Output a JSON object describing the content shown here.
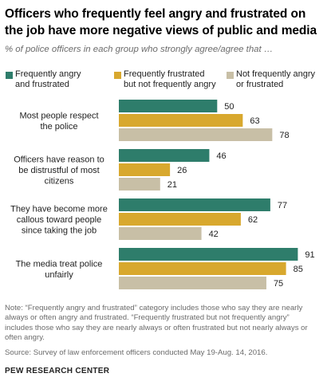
{
  "title_line1": "Officers who frequently feel angry and frustrated on",
  "title_line2": "the job have more negative views of public and media",
  "subtitle": "% of police officers in each group who strongly agree/agree that …",
  "colors": {
    "frequently_angry": "#2e7d6b",
    "frustrated_not_angry": "#d8a82e",
    "not_frequently": "#c8bfa6",
    "label_text": "#222222"
  },
  "legend": [
    {
      "line1": "Frequently angry",
      "line2": "and frustrated"
    },
    {
      "line1": "Frequently frustrated",
      "line2": "but not frequently angry"
    },
    {
      "line1": "Not frequently angry",
      "line2": "or frustrated"
    }
  ],
  "chart_data": {
    "type": "bar",
    "orientation": "horizontal",
    "categories": [
      [
        "Most people respect",
        "the police"
      ],
      [
        "Officers have reason to",
        "be distrustful of most",
        "citizens"
      ],
      [
        "They have become more",
        "callous toward people",
        "since taking the job"
      ],
      [
        "The media treat police",
        "unfairly"
      ]
    ],
    "series": [
      {
        "name": "Frequently angry and frustrated",
        "values": [
          50,
          46,
          77,
          91
        ]
      },
      {
        "name": "Frequently frustrated but not frequently angry",
        "values": [
          63,
          26,
          62,
          85
        ]
      },
      {
        "name": "Not frequently angry or frustrated",
        "values": [
          78,
          21,
          42,
          75
        ]
      }
    ],
    "xlim": [
      0,
      100
    ],
    "grid": false,
    "legend_position": "top"
  },
  "note_line1": "Note: “Frequently angry and frustrated” category includes those who say they are nearly",
  "note_line2": "always or often angry and frustrated. “Frequently frustrated but not frequently angry”",
  "note_line3": "includes those who say they are nearly always or often frustrated but not nearly always or",
  "note_line4": "often angry.",
  "source": "Source: Survey of law enforcement officers conducted May 19-Aug. 14, 2016.",
  "org": "PEW RESEARCH CENTER"
}
